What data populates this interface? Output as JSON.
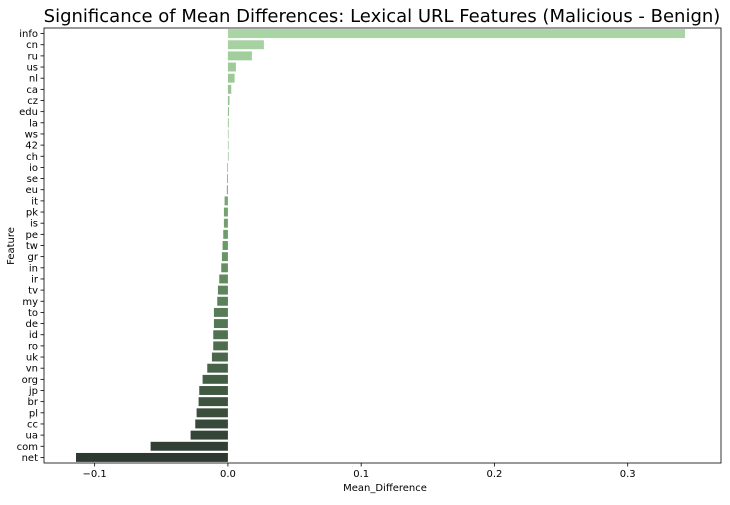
{
  "chart_data": {
    "type": "bar",
    "orientation": "horizontal",
    "title": "Significance of Mean Differences: Lexical URL Features (Malicious - Benign)",
    "xlabel": "Mean_Difference",
    "ylabel": "Feature",
    "xlim": [
      -0.138,
      0.37
    ],
    "xticks": [
      -0.1,
      0.0,
      0.1,
      0.2,
      0.3
    ],
    "xtick_labels": [
      "−0.1",
      "0.0",
      "0.1",
      "0.2",
      "0.3"
    ],
    "grid": false,
    "legend": "none",
    "colors": {
      "top": "#a9d4a3",
      "middle": "#6a9a67",
      "bottom": "#2e3a31"
    },
    "categories": [
      "info",
      "cn",
      "ru",
      "us",
      "nl",
      "ca",
      "cz",
      "edu",
      "la",
      "ws",
      "42",
      "ch",
      "io",
      "se",
      "eu",
      "it",
      "pk",
      "is",
      "pe",
      "tw",
      "gr",
      "in",
      "ir",
      "tv",
      "my",
      "to",
      "de",
      "id",
      "ro",
      "uk",
      "vn",
      "org",
      "jp",
      "br",
      "pl",
      "cc",
      "ua",
      "com",
      "net"
    ],
    "values": [
      0.343,
      0.027,
      0.018,
      0.006,
      0.005,
      0.0025,
      0.0012,
      0.0008,
      0.0006,
      0.0,
      0.0,
      0.0,
      -0.0005,
      -0.0006,
      -0.0008,
      -0.0025,
      -0.003,
      -0.003,
      -0.0035,
      -0.004,
      -0.0045,
      -0.005,
      -0.0065,
      -0.0075,
      -0.008,
      -0.0105,
      -0.0105,
      -0.011,
      -0.011,
      -0.012,
      -0.0155,
      -0.019,
      -0.0215,
      -0.022,
      -0.0235,
      -0.0245,
      -0.028,
      -0.058,
      -0.114
    ]
  }
}
